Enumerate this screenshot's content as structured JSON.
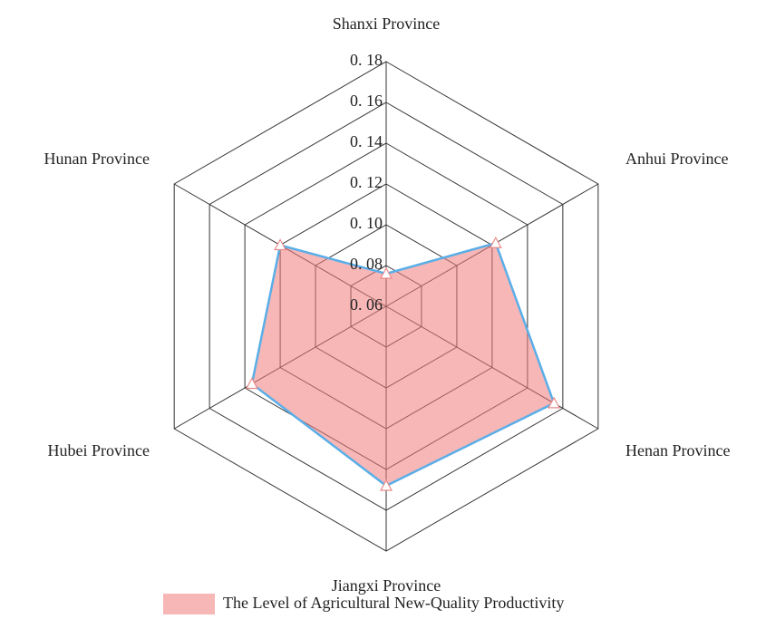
{
  "chart_data": {
    "type": "radar",
    "categories": [
      "Shanxi Province",
      "Anhui Province",
      "Henan Province",
      "Jiangxi Province",
      "Hubei Province",
      "Hunan Province"
    ],
    "series": [
      {
        "name": "The Level of Agricultural New-Quality Productivity",
        "color": "#f07c7c",
        "line_color": "#5aaee8",
        "values": [
          0.076,
          0.122,
          0.155,
          0.148,
          0.136,
          0.12
        ]
      }
    ],
    "ylim": [
      0.06,
      0.18
    ],
    "yticks": [
      {
        "value": 0.06,
        "label": "0. 06"
      },
      {
        "value": 0.08,
        "label": "0. 08"
      },
      {
        "value": 0.1,
        "label": "0. 10"
      },
      {
        "value": 0.12,
        "label": "0. 12"
      },
      {
        "value": 0.14,
        "label": "0. 14"
      },
      {
        "value": 0.16,
        "label": "0. 16"
      },
      {
        "value": 0.18,
        "label": "0. 18"
      }
    ],
    "grid": true
  }
}
